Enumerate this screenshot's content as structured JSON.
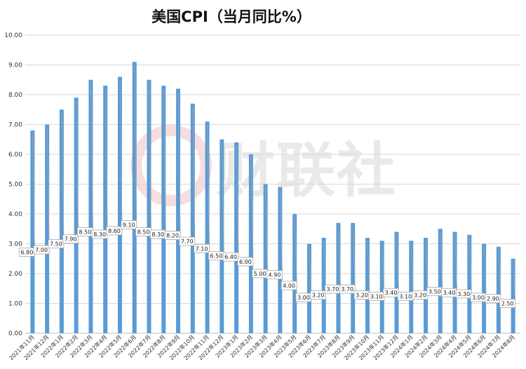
{
  "chart_data": {
    "type": "bar",
    "title": "美国CPI（当月同比%）",
    "xlabel": "",
    "ylabel": "",
    "ylim": [
      0,
      10
    ],
    "yticks": [
      "0.00",
      "1.00",
      "2.00",
      "3.00",
      "4.00",
      "5.00",
      "6.00",
      "7.00",
      "8.00",
      "9.00",
      "10.00"
    ],
    "grid": true,
    "legend": "none",
    "bar_color": "#5b9bd5",
    "watermark": "财联社",
    "categories": [
      "2021年11月",
      "2021年12月",
      "2022年1月",
      "2022年2月",
      "2022年3月",
      "2022年4月",
      "2022年5月",
      "2022年6月",
      "2022年7月",
      "2022年8月",
      "2022年9月",
      "2022年10月",
      "2022年11月",
      "2022年12月",
      "2023年1月",
      "2023年2月",
      "2023年3月",
      "2023年4月",
      "2023年5月",
      "2023年6月",
      "2023年7月",
      "2023年8月",
      "2023年9月",
      "2023年10月",
      "2023年11月",
      "2023年12月",
      "2024年1月",
      "2024年2月",
      "2024年3月",
      "2024年4月",
      "2024年5月",
      "2024年6月",
      "2024年7月",
      "2024年8月"
    ],
    "values": [
      6.8,
      7.0,
      7.5,
      7.9,
      8.5,
      8.3,
      8.6,
      9.1,
      8.5,
      8.3,
      8.2,
      7.7,
      7.1,
      6.5,
      6.4,
      6.0,
      5.0,
      4.9,
      4.0,
      3.0,
      3.2,
      3.7,
      3.7,
      3.2,
      3.1,
      3.4,
      3.1,
      3.2,
      3.5,
      3.4,
      3.3,
      3.0,
      2.9,
      2.5
    ],
    "data_labels": [
      "6.80",
      "7.00",
      "7.50",
      "7.90",
      "8.50",
      "8.30",
      "8.60",
      "9.10",
      "8.50",
      "8.30",
      "8.20",
      "7.70",
      "7.10",
      "6.50",
      "6.40",
      "6.00",
      "5.00",
      "4.90",
      "4.00",
      "3.00",
      "3.20",
      "3.70",
      "3.70",
      "3.20",
      "3.10",
      "3.40",
      "3.10",
      "3.20",
      "3.50",
      "3.40",
      "3.30",
      "3.00",
      "2.90",
      "2.50"
    ]
  }
}
